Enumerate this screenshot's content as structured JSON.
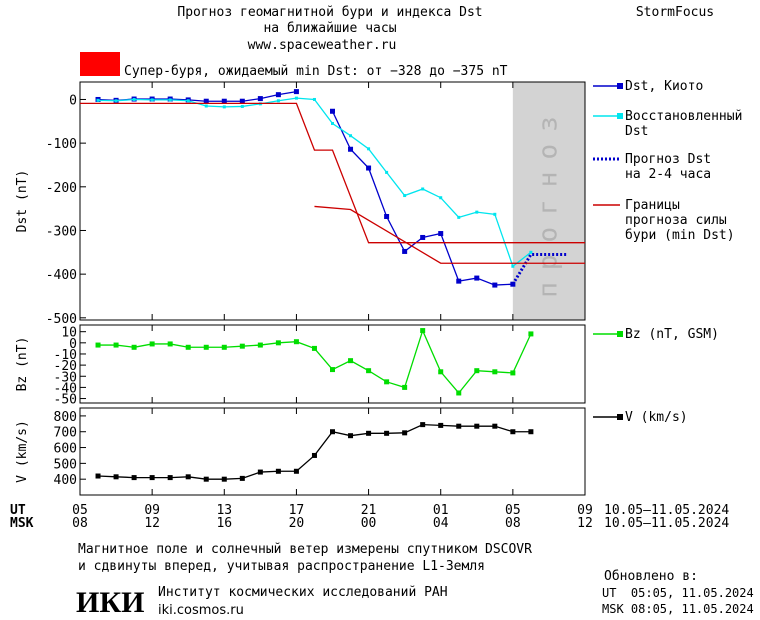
{
  "header": {
    "title_lines": [
      "Прогноз геомагнитной бури и индекса Dst",
      "на ближайшие часы"
    ],
    "url": "www.spaceweather.ru",
    "brand": "StormFocus"
  },
  "alert": {
    "text": "Супер-буря, ожидаемый min Dst: от −328 до −375 nT",
    "color": "#ff0000"
  },
  "chart_data": [
    {
      "type": "line",
      "y_label": "Dst (nT)",
      "xlim": [
        0,
        28
      ],
      "ylim": [
        -505,
        40
      ],
      "yticks": [
        0,
        -100,
        -200,
        -300,
        -400,
        -500
      ],
      "forecast_region": {
        "xlim": [
          24,
          28
        ],
        "label": "прогноз",
        "color": "#d3d3d3"
      },
      "series": [
        {
          "name": [
            "Dst, Киото"
          ],
          "color": "#0000cc",
          "marker": "square",
          "x": [
            1,
            2,
            3,
            4,
            5,
            6,
            7,
            8,
            9,
            10,
            11,
            12,
            13,
            14,
            15,
            16,
            17,
            18,
            19,
            20,
            21,
            22,
            23,
            24
          ],
          "values": [
            0,
            -2,
            1,
            1,
            1,
            -1,
            -4,
            -4,
            -4,
            2,
            11,
            18,
            null,
            -27,
            -114,
            -157,
            -268,
            -348,
            -316,
            -307,
            -416,
            -409,
            -425,
            -423
          ]
        },
        {
          "name": [
            "Восстановленный",
            "Dst"
          ],
          "color": "#00e5ee",
          "marker": "small-square",
          "x": [
            1,
            2,
            3,
            4,
            5,
            6,
            7,
            8,
            9,
            10,
            11,
            12,
            13,
            14,
            15,
            16,
            17,
            18,
            19,
            20,
            21,
            22,
            23,
            24,
            25
          ],
          "values": [
            -2,
            -3,
            0,
            -1,
            -1,
            -3,
            -15,
            -17,
            -16,
            -10,
            -3,
            3,
            0,
            -55,
            -83,
            -113,
            -167,
            -220,
            -205,
            -225,
            -270,
            -258,
            -263,
            -382,
            -350
          ]
        },
        {
          "name": [
            "Прогноз Dst",
            "на 2-4 часа"
          ],
          "color": "#0000cc",
          "marker": "none",
          "dash": true,
          "x": [
            24,
            25,
            27
          ],
          "values": [
            -423,
            -355,
            -355
          ]
        },
        {
          "name": [
            "Границы",
            "прогноза силы",
            "бури (min Dst)"
          ],
          "color": "#cc0000",
          "marker": "none",
          "lines": [
            {
              "x": [
                0,
                12,
                13,
                14,
                16,
                28
              ],
              "values": [
                -9,
                -9,
                -116,
                -116,
                -328,
                -328
              ]
            },
            {
              "x": [
                13,
                15,
                20,
                28
              ],
              "values": [
                -245,
                -252,
                -375,
                -375
              ]
            }
          ]
        }
      ]
    },
    {
      "type": "line",
      "y_label": "Bz (nT)",
      "xlim": [
        0,
        28
      ],
      "ylim": [
        -54,
        16
      ],
      "yticks": [
        10,
        0,
        -10,
        -20,
        -30,
        -40,
        -50
      ],
      "series": [
        {
          "name": [
            "Bz (nT, GSM)"
          ],
          "color": "#00dd00",
          "marker": "square",
          "x": [
            1,
            2,
            3,
            4,
            5,
            6,
            7,
            8,
            9,
            10,
            11,
            12,
            13,
            14,
            15,
            16,
            17,
            18,
            19,
            20,
            21,
            22,
            23,
            24,
            25
          ],
          "values": [
            -2,
            -2,
            -4,
            -1,
            -1,
            -4,
            -4,
            -4,
            -3,
            -2,
            0,
            1,
            -5,
            -24,
            -16,
            -25,
            -35,
            -40,
            11,
            -26,
            -45,
            -25,
            -26,
            -27,
            8
          ]
        }
      ]
    },
    {
      "type": "line",
      "y_label": "V (km/s)",
      "xlim": [
        0,
        28
      ],
      "ylim": [
        300,
        850
      ],
      "yticks": [
        800,
        700,
        600,
        500,
        400
      ],
      "xticks": [
        {
          "value": 0,
          "label": "05"
        },
        {
          "value": 4,
          "label": "09"
        },
        {
          "value": 8,
          "label": "13"
        },
        {
          "value": 12,
          "label": "17"
        },
        {
          "value": 16,
          "label": "21"
        },
        {
          "value": 20,
          "label": "01"
        },
        {
          "value": 24,
          "label": "05"
        },
        {
          "value": 28,
          "label": "09"
        }
      ],
      "msk_tick_labels": [
        "08",
        "12",
        "16",
        "20",
        "00",
        "04",
        "08",
        "12"
      ],
      "ut_label": "UT",
      "msk_label": "MSK",
      "date_range": "10.05–11.05.2024",
      "series": [
        {
          "name": [
            "V (km/s)"
          ],
          "color": "#000000",
          "marker": "square",
          "x": [
            1,
            2,
            3,
            4,
            5,
            6,
            7,
            8,
            9,
            10,
            11,
            12,
            13,
            14,
            15,
            16,
            17,
            18,
            19,
            20,
            21,
            22,
            23,
            24,
            25
          ],
          "values": [
            420,
            415,
            410,
            410,
            410,
            415,
            400,
            400,
            405,
            445,
            450,
            450,
            550,
            700,
            675,
            690,
            690,
            693,
            745,
            740,
            735,
            735,
            735,
            700,
            700
          ]
        }
      ]
    }
  ],
  "footer": {
    "note_lines": [
      "Магнитное поле и солнечный ветер измерены спутником DSCOVR",
      "и сдвинуты вперед, учитывая распространение L1-Земля"
    ],
    "logo": "ИКИ",
    "institute": "Институт космических исследований РАН",
    "site": "iki.cosmos.ru",
    "updated_label": "Обновлено в:",
    "updated_lines": [
      "UT  05:05, 11.05.2024",
      "MSK 08:05, 11.05.2024"
    ]
  }
}
